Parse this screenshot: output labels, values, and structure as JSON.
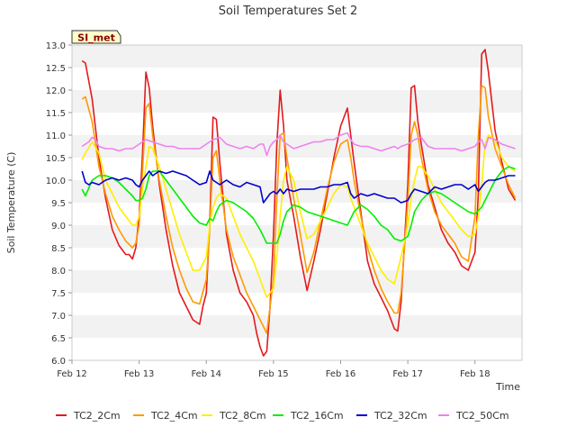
{
  "chart_data": {
    "type": "line",
    "title": "Soil Temperatures Set 2",
    "xlabel": "Time",
    "ylabel": "Soil Temperature (C)",
    "ylim": [
      6.0,
      13.0
    ],
    "xlim": [
      0,
      6.7
    ],
    "grid": "horizontal bands",
    "legend_position": "bottom",
    "station_label": "SI_met",
    "x_tick_labels": [
      "Feb 12",
      "Feb 13",
      "Feb 14",
      "Feb 15",
      "Feb 16",
      "Feb 17",
      "Feb 18"
    ],
    "x_tick_positions": [
      0,
      1,
      2,
      3,
      4,
      5,
      6
    ],
    "y_ticks": [
      6.0,
      6.5,
      7.0,
      7.5,
      8.0,
      8.5,
      9.0,
      9.5,
      10.0,
      10.5,
      11.0,
      11.5,
      12.0,
      12.5,
      13.0
    ],
    "y_tick_labels": [
      "6.0",
      "6.5",
      "7.0",
      "7.5",
      "8.0",
      "8.5",
      "9.0",
      "9.5",
      "10.0",
      "10.5",
      "11.0",
      "11.5",
      "12.0",
      "12.5",
      "13.0"
    ],
    "series": [
      {
        "name": "TC2_2Cm",
        "color": "#e31a1c",
        "x": [
          0.15,
          0.2,
          0.3,
          0.4,
          0.5,
          0.6,
          0.7,
          0.8,
          0.85,
          0.9,
          0.95,
          1.0,
          1.05,
          1.1,
          1.15,
          1.2,
          1.3,
          1.4,
          1.5,
          1.6,
          1.7,
          1.8,
          1.9,
          1.95,
          2.0,
          2.05,
          2.1,
          2.15,
          2.2,
          2.3,
          2.4,
          2.5,
          2.6,
          2.7,
          2.75,
          2.8,
          2.85,
          2.9,
          2.95,
          3.0,
          3.05,
          3.1,
          3.15,
          3.2,
          3.3,
          3.4,
          3.5,
          3.6,
          3.7,
          3.8,
          3.9,
          4.0,
          4.1,
          4.15,
          4.2,
          4.3,
          4.4,
          4.5,
          4.6,
          4.7,
          4.8,
          4.85,
          4.9,
          4.95,
          5.0,
          5.05,
          5.1,
          5.15,
          5.2,
          5.3,
          5.4,
          5.5,
          5.6,
          5.7,
          5.8,
          5.9,
          6.0,
          6.05,
          6.1,
          6.15,
          6.2,
          6.3,
          6.4,
          6.5,
          6.6
        ],
        "y": [
          12.65,
          12.6,
          11.8,
          10.5,
          9.6,
          8.9,
          8.55,
          8.35,
          8.35,
          8.25,
          8.5,
          9.2,
          10.6,
          12.4,
          12.05,
          11.2,
          9.9,
          8.9,
          8.1,
          7.5,
          7.2,
          6.9,
          6.8,
          7.2,
          7.5,
          9.0,
          11.4,
          11.35,
          10.4,
          8.8,
          8.0,
          7.5,
          7.3,
          7.0,
          6.6,
          6.3,
          6.1,
          6.2,
          7.2,
          8.8,
          10.8,
          12.0,
          11.2,
          10.0,
          9.2,
          8.3,
          7.55,
          8.2,
          8.9,
          9.7,
          10.5,
          11.2,
          11.6,
          11.0,
          10.4,
          9.3,
          8.2,
          7.7,
          7.4,
          7.1,
          6.7,
          6.65,
          7.3,
          8.6,
          9.9,
          12.05,
          12.1,
          11.3,
          10.8,
          9.9,
          9.4,
          8.9,
          8.6,
          8.4,
          8.1,
          8.0,
          8.4,
          9.7,
          12.8,
          12.9,
          12.4,
          11.1,
          10.4,
          9.8,
          9.55
        ]
      },
      {
        "name": "TC2_4Cm",
        "color": "#ff9900",
        "x": [
          0.15,
          0.2,
          0.3,
          0.4,
          0.5,
          0.6,
          0.7,
          0.8,
          0.9,
          0.95,
          1.0,
          1.05,
          1.1,
          1.15,
          1.2,
          1.3,
          1.4,
          1.5,
          1.6,
          1.7,
          1.8,
          1.9,
          2.0,
          2.05,
          2.1,
          2.15,
          2.2,
          2.3,
          2.4,
          2.5,
          2.6,
          2.7,
          2.8,
          2.9,
          3.0,
          3.05,
          3.1,
          3.15,
          3.2,
          3.3,
          3.4,
          3.5,
          3.6,
          3.7,
          3.8,
          3.9,
          4.0,
          4.1,
          4.15,
          4.2,
          4.3,
          4.4,
          4.5,
          4.6,
          4.7,
          4.8,
          4.85,
          4.9,
          5.0,
          5.05,
          5.1,
          5.15,
          5.2,
          5.3,
          5.4,
          5.5,
          5.6,
          5.7,
          5.8,
          5.9,
          6.0,
          6.05,
          6.1,
          6.15,
          6.2,
          6.3,
          6.4,
          6.5,
          6.6
        ],
        "y": [
          11.8,
          11.85,
          11.3,
          10.3,
          9.7,
          9.2,
          8.9,
          8.65,
          8.5,
          8.6,
          9.0,
          10.2,
          11.6,
          11.7,
          11.0,
          10.0,
          9.2,
          8.5,
          8.0,
          7.6,
          7.3,
          7.25,
          7.8,
          8.9,
          10.5,
          10.65,
          10.0,
          8.9,
          8.3,
          7.9,
          7.5,
          7.2,
          6.9,
          6.6,
          7.8,
          9.6,
          11.0,
          11.05,
          10.5,
          9.6,
          8.8,
          7.95,
          8.4,
          9.1,
          9.8,
          10.4,
          10.8,
          10.9,
          10.5,
          10.0,
          9.2,
          8.5,
          8.0,
          7.6,
          7.3,
          7.05,
          7.05,
          7.5,
          9.5,
          11.0,
          11.3,
          11.0,
          10.5,
          9.8,
          9.3,
          9.0,
          8.8,
          8.6,
          8.3,
          8.2,
          9.2,
          11.0,
          12.1,
          12.05,
          11.4,
          10.7,
          10.3,
          9.9,
          9.6
        ]
      },
      {
        "name": "TC2_8Cm",
        "color": "#ffee00",
        "x": [
          0.15,
          0.2,
          0.3,
          0.4,
          0.5,
          0.6,
          0.7,
          0.8,
          0.9,
          0.95,
          1.0,
          1.05,
          1.1,
          1.15,
          1.2,
          1.3,
          1.4,
          1.5,
          1.6,
          1.7,
          1.8,
          1.9,
          2.0,
          2.05,
          2.1,
          2.15,
          2.2,
          2.3,
          2.4,
          2.5,
          2.6,
          2.7,
          2.8,
          2.9,
          3.0,
          3.05,
          3.1,
          3.15,
          3.2,
          3.3,
          3.4,
          3.5,
          3.6,
          3.7,
          3.8,
          3.9,
          4.0,
          4.1,
          4.15,
          4.2,
          4.3,
          4.4,
          4.5,
          4.6,
          4.7,
          4.8,
          4.9,
          5.0,
          5.05,
          5.1,
          5.15,
          5.2,
          5.3,
          5.4,
          5.5,
          5.6,
          5.7,
          5.8,
          5.9,
          6.0,
          6.05,
          6.1,
          6.15,
          6.2,
          6.3,
          6.4,
          6.5,
          6.6
        ],
        "y": [
          10.45,
          10.6,
          10.85,
          10.6,
          10.0,
          9.7,
          9.4,
          9.2,
          9.0,
          9.0,
          9.2,
          9.8,
          10.3,
          10.75,
          10.7,
          10.3,
          9.8,
          9.3,
          8.8,
          8.4,
          8.0,
          8.0,
          8.3,
          9.0,
          9.4,
          9.6,
          9.7,
          9.6,
          9.2,
          8.8,
          8.5,
          8.2,
          7.8,
          7.4,
          7.6,
          8.3,
          9.2,
          10.0,
          10.3,
          10.0,
          9.3,
          8.7,
          8.8,
          9.1,
          9.4,
          9.7,
          9.9,
          9.85,
          9.6,
          9.4,
          9.0,
          8.6,
          8.3,
          8.0,
          7.8,
          7.7,
          8.3,
          9.0,
          9.6,
          10.0,
          10.3,
          10.3,
          10.1,
          9.8,
          9.5,
          9.3,
          9.1,
          8.9,
          8.75,
          8.8,
          9.2,
          9.9,
          10.8,
          11.0,
          10.9,
          10.5,
          10.3,
          10.2
        ]
      },
      {
        "name": "TC2_16Cm",
        "color": "#00ee00",
        "x": [
          0.15,
          0.2,
          0.3,
          0.4,
          0.5,
          0.6,
          0.7,
          0.8,
          0.9,
          0.95,
          1.0,
          1.05,
          1.1,
          1.15,
          1.2,
          1.3,
          1.4,
          1.5,
          1.6,
          1.7,
          1.8,
          1.9,
          2.0,
          2.05,
          2.1,
          2.15,
          2.2,
          2.3,
          2.4,
          2.5,
          2.6,
          2.7,
          2.8,
          2.9,
          3.0,
          3.05,
          3.1,
          3.15,
          3.2,
          3.3,
          3.4,
          3.5,
          3.6,
          3.7,
          3.8,
          3.9,
          4.0,
          4.1,
          4.2,
          4.3,
          4.4,
          4.5,
          4.6,
          4.7,
          4.8,
          4.9,
          5.0,
          5.05,
          5.1,
          5.2,
          5.3,
          5.4,
          5.5,
          5.6,
          5.7,
          5.8,
          5.9,
          6.0,
          6.1,
          6.2,
          6.3,
          6.4,
          6.5,
          6.6
        ],
        "y": [
          9.8,
          9.65,
          10.0,
          10.1,
          10.1,
          10.05,
          9.95,
          9.8,
          9.65,
          9.55,
          9.55,
          9.6,
          9.8,
          10.1,
          10.2,
          10.2,
          10.0,
          9.8,
          9.6,
          9.4,
          9.2,
          9.05,
          9.0,
          9.15,
          9.1,
          9.3,
          9.45,
          9.55,
          9.5,
          9.4,
          9.3,
          9.15,
          8.9,
          8.6,
          8.6,
          8.6,
          8.8,
          9.1,
          9.3,
          9.45,
          9.4,
          9.3,
          9.25,
          9.2,
          9.15,
          9.1,
          9.05,
          9.0,
          9.3,
          9.45,
          9.35,
          9.2,
          9.0,
          8.9,
          8.7,
          8.65,
          8.75,
          9.0,
          9.3,
          9.55,
          9.7,
          9.75,
          9.7,
          9.6,
          9.5,
          9.4,
          9.3,
          9.25,
          9.4,
          9.7,
          10.0,
          10.2,
          10.3,
          10.25
        ]
      },
      {
        "name": "TC2_32Cm",
        "color": "#0000cc",
        "x": [
          0.15,
          0.2,
          0.25,
          0.3,
          0.4,
          0.5,
          0.6,
          0.7,
          0.8,
          0.9,
          0.95,
          1.0,
          1.05,
          1.1,
          1.15,
          1.2,
          1.3,
          1.4,
          1.5,
          1.6,
          1.7,
          1.8,
          1.9,
          2.0,
          2.05,
          2.1,
          2.2,
          2.3,
          2.4,
          2.5,
          2.6,
          2.7,
          2.8,
          2.85,
          2.9,
          2.95,
          3.0,
          3.05,
          3.1,
          3.15,
          3.2,
          3.3,
          3.4,
          3.5,
          3.6,
          3.7,
          3.8,
          3.9,
          4.0,
          4.1,
          4.15,
          4.2,
          4.3,
          4.4,
          4.5,
          4.6,
          4.7,
          4.8,
          4.85,
          4.9,
          5.0,
          5.05,
          5.1,
          5.2,
          5.3,
          5.4,
          5.5,
          5.6,
          5.7,
          5.8,
          5.9,
          6.0,
          6.05,
          6.1,
          6.15,
          6.2,
          6.3,
          6.4,
          6.5,
          6.6
        ],
        "y": [
          10.2,
          9.95,
          9.9,
          9.95,
          9.9,
          10.0,
          10.05,
          10.0,
          10.05,
          10.0,
          9.9,
          9.85,
          10.0,
          10.1,
          10.2,
          10.1,
          10.2,
          10.15,
          10.2,
          10.15,
          10.1,
          10.0,
          9.9,
          9.95,
          10.2,
          10.0,
          9.9,
          10.0,
          9.9,
          9.85,
          9.95,
          9.9,
          9.85,
          9.5,
          9.6,
          9.7,
          9.75,
          9.7,
          9.8,
          9.7,
          9.8,
          9.75,
          9.8,
          9.8,
          9.8,
          9.85,
          9.85,
          9.9,
          9.9,
          9.95,
          9.7,
          9.6,
          9.7,
          9.65,
          9.7,
          9.65,
          9.6,
          9.6,
          9.55,
          9.5,
          9.55,
          9.7,
          9.8,
          9.75,
          9.7,
          9.85,
          9.8,
          9.85,
          9.9,
          9.9,
          9.8,
          9.9,
          9.75,
          9.85,
          9.95,
          10.0,
          10.0,
          10.05,
          10.1,
          10.1
        ]
      },
      {
        "name": "TC2_50Cm",
        "color": "#ee82ee",
        "x": [
          0.15,
          0.2,
          0.25,
          0.3,
          0.35,
          0.4,
          0.5,
          0.6,
          0.7,
          0.8,
          0.9,
          0.95,
          1.0,
          1.05,
          1.1,
          1.2,
          1.3,
          1.4,
          1.5,
          1.6,
          1.7,
          1.8,
          1.9,
          1.95,
          2.0,
          2.05,
          2.1,
          2.2,
          2.3,
          2.4,
          2.5,
          2.6,
          2.7,
          2.75,
          2.8,
          2.85,
          2.9,
          2.95,
          3.0,
          3.05,
          3.1,
          3.15,
          3.2,
          3.3,
          3.4,
          3.5,
          3.6,
          3.7,
          3.8,
          3.9,
          4.0,
          4.1,
          4.15,
          4.2,
          4.3,
          4.4,
          4.5,
          4.6,
          4.7,
          4.8,
          4.85,
          4.9,
          5.0,
          5.05,
          5.1,
          5.2,
          5.3,
          5.4,
          5.5,
          5.6,
          5.7,
          5.8,
          5.9,
          6.0,
          6.05,
          6.1,
          6.15,
          6.2,
          6.3,
          6.4,
          6.5,
          6.6
        ],
        "y": [
          10.75,
          10.8,
          10.85,
          10.95,
          10.9,
          10.75,
          10.7,
          10.7,
          10.65,
          10.7,
          10.7,
          10.75,
          10.8,
          10.85,
          10.9,
          10.85,
          10.8,
          10.75,
          10.75,
          10.7,
          10.7,
          10.7,
          10.7,
          10.75,
          10.8,
          10.85,
          10.9,
          10.95,
          10.8,
          10.75,
          10.7,
          10.75,
          10.7,
          10.75,
          10.8,
          10.8,
          10.55,
          10.75,
          10.85,
          10.9,
          11.0,
          10.85,
          10.8,
          10.7,
          10.75,
          10.8,
          10.85,
          10.85,
          10.9,
          10.9,
          11.0,
          11.05,
          10.9,
          10.8,
          10.75,
          10.75,
          10.7,
          10.65,
          10.7,
          10.75,
          10.7,
          10.75,
          10.8,
          10.85,
          10.9,
          10.95,
          10.75,
          10.7,
          10.7,
          10.7,
          10.7,
          10.65,
          10.7,
          10.75,
          10.85,
          10.9,
          10.7,
          10.95,
          10.9,
          10.8,
          10.75,
          10.7
        ]
      }
    ]
  }
}
